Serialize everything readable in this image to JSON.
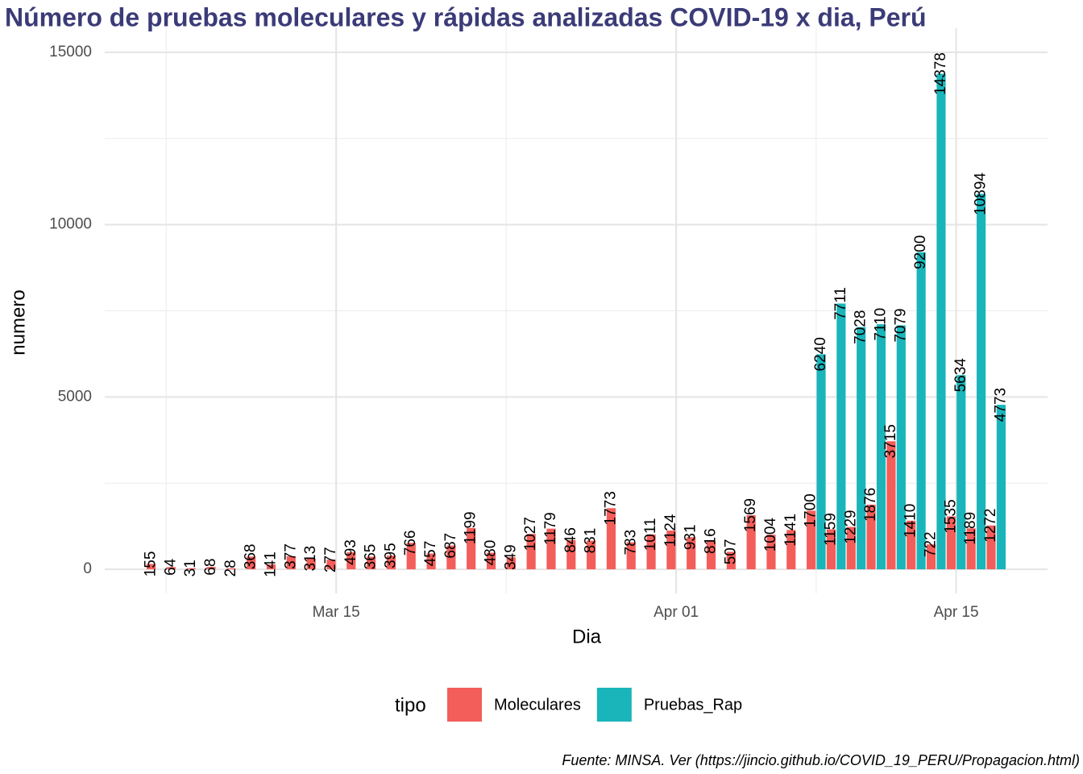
{
  "chart_data": {
    "type": "bar",
    "title": "Número de pruebas moleculares y rápidas analizadas COVID-19 x dia, Perú",
    "x_label": "Dia",
    "y_label": "numero",
    "legend_title": "tipo",
    "caption": "Fuente: MINSA. Ver (https://jincio.github.io/COVID_19_PERU/Propagacion.html)",
    "x": [
      "Mar 06",
      "Mar 07",
      "Mar 08",
      "Mar 09",
      "Mar 10",
      "Mar 11",
      "Mar 12",
      "Mar 13",
      "Mar 14",
      "Mar 15",
      "Mar 16",
      "Mar 17",
      "Mar 18",
      "Mar 19",
      "Mar 20",
      "Mar 21",
      "Mar 22",
      "Mar 23",
      "Mar 24",
      "Mar 25",
      "Mar 26",
      "Mar 27",
      "Mar 28",
      "Mar 29",
      "Mar 30",
      "Mar 31",
      "Apr 01",
      "Apr 02",
      "Apr 03",
      "Apr 04",
      "Apr 05",
      "Apr 06",
      "Apr 07",
      "Apr 08",
      "Apr 09",
      "Apr 10",
      "Apr 11",
      "Apr 12",
      "Apr 13",
      "Apr 14",
      "Apr 15",
      "Apr 16",
      "Apr 17"
    ],
    "series": [
      {
        "name": "Moleculares",
        "color": "#F35E5A",
        "values": [
          155,
          64,
          31,
          68,
          28,
          368,
          141,
          377,
          313,
          277,
          493,
          365,
          395,
          766,
          457,
          687,
          1199,
          480,
          349,
          1027,
          1179,
          846,
          831,
          1773,
          783,
          1011,
          1124,
          931,
          816,
          507,
          1569,
          1004,
          1141,
          1700,
          1159,
          1229,
          1876,
          3715,
          1410,
          722,
          1535,
          1189,
          1272
        ]
      },
      {
        "name": "Pruebas_Rap",
        "color": "#19B5BA",
        "values": [
          null,
          null,
          null,
          null,
          null,
          null,
          null,
          null,
          null,
          null,
          null,
          null,
          null,
          null,
          null,
          null,
          null,
          null,
          null,
          null,
          null,
          null,
          null,
          null,
          null,
          null,
          null,
          null,
          null,
          null,
          null,
          null,
          null,
          6240,
          7711,
          7028,
          7110,
          7079,
          9200,
          14378,
          5634,
          10894,
          4773
        ]
      }
    ],
    "xticks": [
      "Mar 15",
      "Apr 01",
      "Apr 15"
    ],
    "ylim": [
      -700,
      15700
    ],
    "yticks": [
      0,
      5000,
      10000,
      15000
    ],
    "grid": true,
    "legend_position": "bottom"
  }
}
